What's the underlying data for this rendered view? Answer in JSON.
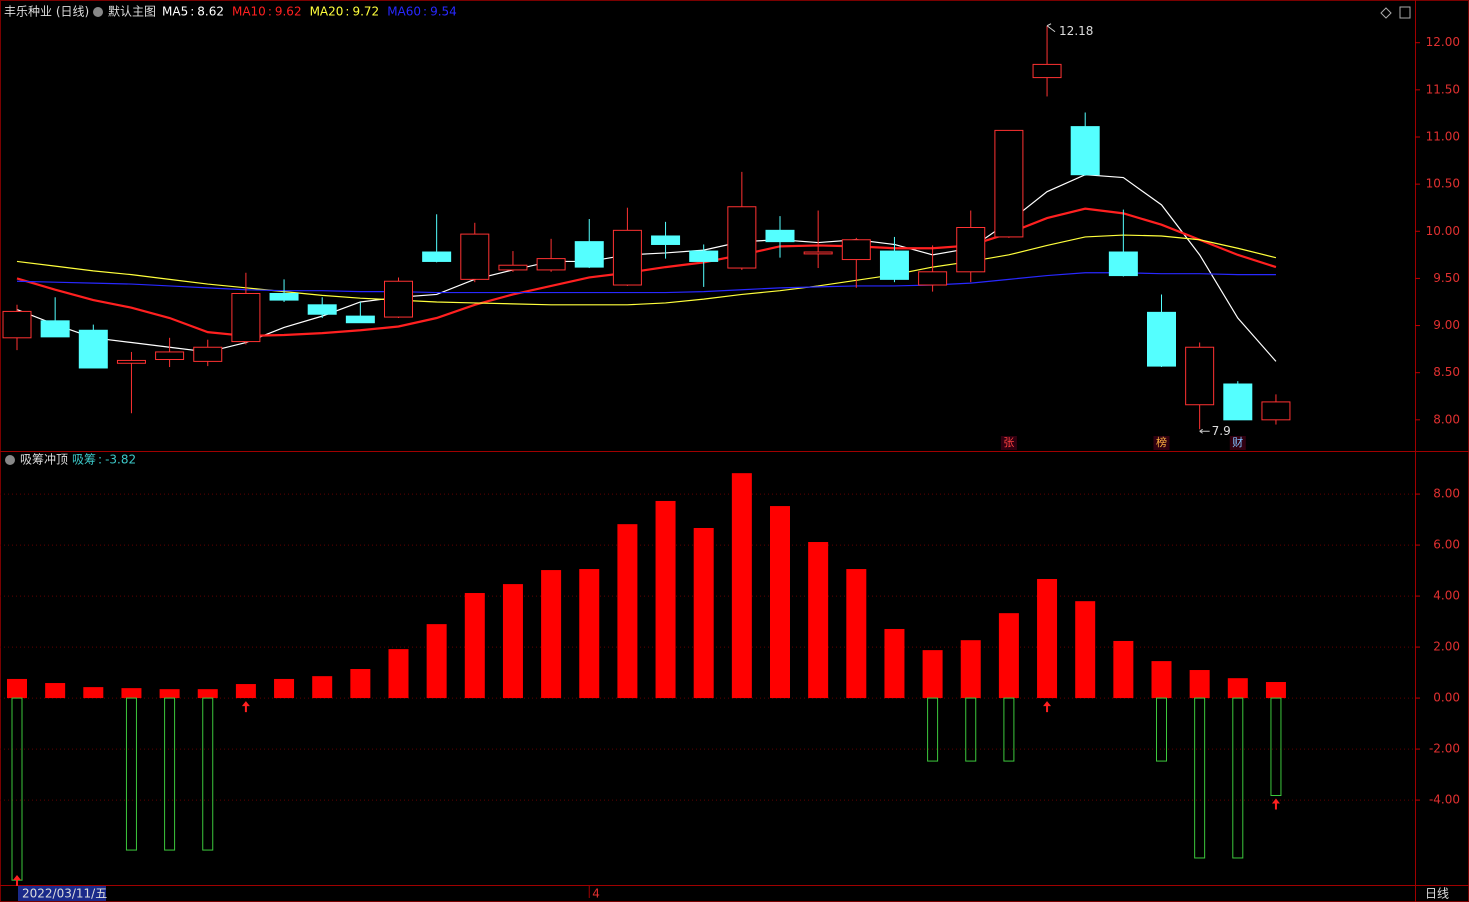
{
  "chart_data": [
    {
      "type": "candlestick",
      "title": "丰乐种业 (日线)",
      "subtitle": "默认主图",
      "legend_separator": ":",
      "categories": [
        null,
        null,
        null,
        null,
        null,
        null,
        null,
        null,
        null,
        null,
        null,
        null,
        null,
        null,
        null,
        "4",
        null,
        null,
        null,
        null,
        null,
        null,
        null,
        null,
        null,
        null,
        null,
        null,
        null,
        null,
        null,
        null,
        null,
        null
      ],
      "cursor_label": "2022/03/11/五",
      "period_label": "日线",
      "open": [
        8.87,
        9.05,
        8.95,
        8.6,
        8.64,
        8.62,
        8.83,
        9.34,
        9.22,
        9.1,
        9.09,
        9.78,
        9.49,
        9.59,
        9.59,
        9.89,
        9.43,
        9.95,
        9.79,
        9.61,
        10.01,
        9.76,
        9.7,
        9.79,
        9.43,
        9.57,
        9.94,
        11.63,
        11.11,
        9.78,
        9.14,
        8.16,
        8.38,
        8.0
      ],
      "high": [
        9.22,
        9.3,
        9.01,
        8.72,
        8.87,
        8.85,
        9.56,
        9.49,
        9.3,
        9.25,
        9.51,
        10.18,
        10.09,
        9.79,
        9.92,
        10.13,
        10.25,
        10.1,
        9.86,
        10.63,
        10.16,
        10.22,
        9.93,
        9.94,
        9.85,
        10.22,
        11.07,
        12.18,
        11.26,
        10.23,
        9.33,
        8.82,
        8.41,
        8.27
      ],
      "low": [
        8.74,
        8.88,
        8.55,
        8.07,
        8.56,
        8.57,
        8.8,
        9.25,
        9.08,
        9.03,
        9.08,
        9.67,
        9.46,
        9.57,
        9.57,
        9.61,
        9.42,
        9.71,
        9.41,
        9.59,
        9.72,
        9.61,
        9.4,
        9.46,
        9.36,
        9.46,
        9.93,
        11.43,
        10.59,
        9.52,
        8.56,
        7.9,
        8.0,
        7.95
      ],
      "close": [
        9.15,
        8.88,
        8.55,
        8.63,
        8.72,
        8.77,
        9.34,
        9.27,
        9.12,
        9.03,
        9.47,
        9.68,
        9.97,
        9.64,
        9.71,
        9.62,
        10.01,
        9.86,
        9.68,
        10.26,
        9.89,
        9.78,
        9.91,
        9.49,
        9.57,
        10.04,
        11.07,
        11.77,
        10.6,
        9.53,
        8.57,
        8.77,
        8.0,
        8.19
      ],
      "up_color": "#ff3232",
      "down_color": "#54ffff",
      "series": [
        {
          "name": "MA5",
          "color": "#ffffff",
          "values": [
            9.17,
            9.01,
            8.87,
            8.82,
            8.77,
            8.72,
            8.82,
            8.98,
            9.1,
            9.25,
            9.3,
            9.33,
            9.49,
            9.59,
            9.68,
            9.68,
            9.75,
            9.77,
            9.8,
            9.89,
            9.91,
            9.88,
            9.91,
            9.86,
            9.75,
            9.82,
            10.1,
            10.42,
            10.6,
            10.57,
            10.28,
            9.75,
            9.08,
            8.62
          ]
        },
        {
          "name": "MA10",
          "color": "#ff2020",
          "values": [
            9.5,
            9.38,
            9.27,
            9.19,
            9.08,
            8.93,
            8.89,
            8.9,
            8.92,
            8.95,
            8.99,
            9.08,
            9.22,
            9.33,
            9.42,
            9.51,
            9.56,
            9.62,
            9.67,
            9.75,
            9.84,
            9.85,
            9.84,
            9.82,
            9.82,
            9.85,
            9.98,
            10.14,
            10.24,
            10.19,
            10.07,
            9.91,
            9.75,
            9.62
          ]
        },
        {
          "name": "MA20",
          "color": "#ffff3c",
          "values": [
            9.68,
            9.63,
            9.58,
            9.54,
            9.49,
            9.44,
            9.4,
            9.36,
            9.32,
            9.29,
            9.27,
            9.25,
            9.24,
            9.23,
            9.22,
            9.22,
            9.22,
            9.24,
            9.28,
            9.33,
            9.37,
            9.42,
            9.48,
            9.54,
            9.62,
            9.68,
            9.75,
            9.85,
            9.94,
            9.96,
            9.95,
            9.91,
            9.82,
            9.72
          ]
        },
        {
          "name": "MA60",
          "color": "#2828ff",
          "values": [
            9.47,
            9.46,
            9.45,
            9.44,
            9.42,
            9.4,
            9.38,
            9.37,
            9.37,
            9.36,
            9.36,
            9.35,
            9.35,
            9.35,
            9.35,
            9.35,
            9.35,
            9.35,
            9.36,
            9.38,
            9.4,
            9.41,
            9.42,
            9.42,
            9.43,
            9.45,
            9.49,
            9.53,
            9.56,
            9.56,
            9.55,
            9.55,
            9.54,
            9.54
          ]
        }
      ],
      "event_labels": [
        null,
        null,
        null,
        null,
        null,
        null,
        null,
        null,
        null,
        null,
        null,
        null,
        null,
        null,
        null,
        null,
        null,
        null,
        null,
        null,
        null,
        null,
        null,
        null,
        null,
        null,
        "张",
        null,
        null,
        null,
        "榜",
        null,
        "财",
        null
      ],
      "event_colors": [
        null,
        null,
        null,
        null,
        null,
        null,
        null,
        null,
        null,
        null,
        null,
        null,
        null,
        null,
        null,
        null,
        null,
        null,
        null,
        null,
        null,
        null,
        null,
        null,
        null,
        null,
        "#ff4040",
        null,
        null,
        null,
        "#ffb040",
        null,
        "#80c0ff",
        null
      ],
      "ylim": [
        7.68,
        12.4
      ],
      "yticks": [
        {
          "value": 8,
          "label": "8.00"
        },
        {
          "value": 8.5,
          "label": "8.50"
        },
        {
          "value": 9,
          "label": "9.00"
        },
        {
          "value": 9.5,
          "label": "9.50"
        },
        {
          "value": 10,
          "label": "10.00"
        },
        {
          "value": 10.5,
          "label": "10.50"
        },
        {
          "value": 11,
          "label": "11.00"
        },
        {
          "value": 11.5,
          "label": "11.50"
        },
        {
          "value": 12,
          "label": "12.00"
        }
      ],
      "grid": false
    },
    {
      "type": "bar",
      "title": "吸筹冲顶",
      "legend_separator": ":",
      "values": [
        0.75,
        0.59,
        0.43,
        0.39,
        0.35,
        0.35,
        0.55,
        0.75,
        0.86,
        1.14,
        1.92,
        2.9,
        4.12,
        4.47,
        5.02,
        5.06,
        6.82,
        7.73,
        6.67,
        8.82,
        7.53,
        6.12,
        5.06,
        2.71,
        1.88,
        2.27,
        3.33,
        4.67,
        3.8,
        2.24,
        1.45,
        1.1,
        0.78,
        0.63
      ],
      "color": "#ff0000",
      "series": [
        {
          "name": "吸筹",
          "color": "#3cc83c",
          "legend_color": "#3cc8c8",
          "values": [
            -7.14,
            null,
            null,
            -5.96,
            -5.96,
            -5.96,
            null,
            null,
            null,
            null,
            null,
            null,
            null,
            null,
            null,
            null,
            null,
            null,
            null,
            null,
            null,
            null,
            null,
            null,
            -2.47,
            -2.47,
            -2.47,
            null,
            null,
            null,
            -2.47,
            -6.27,
            -6.27,
            -3.82
          ]
        }
      ],
      "buy_signals": [
        true,
        false,
        false,
        false,
        false,
        false,
        true,
        false,
        false,
        false,
        false,
        false,
        false,
        false,
        false,
        false,
        false,
        false,
        false,
        false,
        false,
        false,
        false,
        false,
        false,
        false,
        false,
        true,
        false,
        false,
        false,
        false,
        false,
        true
      ],
      "signal_color": "#ff2020",
      "ylim": [
        -7.33,
        9.65
      ],
      "yticks": [
        {
          "value": 8,
          "label": "8.00"
        },
        {
          "value": 6,
          "label": "6.00"
        },
        {
          "value": 4,
          "label": "4.00"
        },
        {
          "value": 2,
          "label": "2.00"
        },
        {
          "value": 0,
          "label": "0.00"
        },
        {
          "value": -2,
          "label": "-2.00"
        },
        {
          "value": -4,
          "label": "-4.00"
        }
      ],
      "grid": true
    }
  ]
}
